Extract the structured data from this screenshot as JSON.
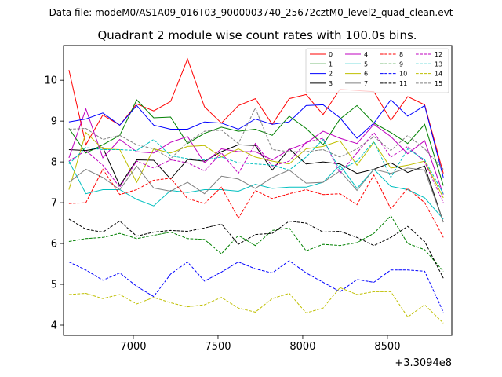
{
  "chart_data": {
    "type": "line",
    "suptitle": "Data file: modeM0/AS1A09_016T03_9000003740_25672cztM0_level2_quad_clean.evt",
    "title": "Quadrant 2 module wise count rates with 100.0s bins.",
    "xlabel": "",
    "ylabel": "",
    "x_offset_label": "+3.3094e8",
    "xlim": [
      6588,
      8880
    ],
    "ylim": [
      3.75,
      10.85
    ],
    "xticks": [
      7000,
      7500,
      8000,
      8500
    ],
    "xtick_labels": [
      "7000",
      "7500",
      "8000",
      "8500"
    ],
    "yticks": [
      4,
      5,
      6,
      7,
      8,
      9,
      10
    ],
    "ytick_labels": [
      "4",
      "5",
      "6",
      "7",
      "8",
      "9",
      "10"
    ],
    "grid": false,
    "legend_position": "top-right",
    "x": [
      6620,
      6720,
      6820,
      6920,
      7020,
      7120,
      7220,
      7320,
      7420,
      7520,
      7620,
      7720,
      7820,
      7920,
      8020,
      8120,
      8220,
      8320,
      8420,
      8520,
      8620,
      8720,
      8830
    ],
    "series": [
      {
        "name": "0",
        "color": "#ff0000",
        "dash": "solid",
        "values": [
          10.25,
          8.42,
          9.15,
          8.9,
          9.42,
          9.25,
          9.48,
          10.52,
          9.35,
          8.95,
          9.38,
          9.55,
          8.92,
          9.55,
          9.65,
          9.16,
          9.78,
          9.75,
          9.72,
          9.02,
          9.6,
          9.4,
          7.72
        ]
      },
      {
        "name": "1",
        "color": "#008000",
        "dash": "solid",
        "values": [
          8.82,
          8.22,
          8.42,
          8.65,
          9.52,
          9.08,
          9.1,
          8.45,
          8.7,
          8.85,
          8.75,
          8.8,
          8.65,
          9.12,
          8.82,
          8.42,
          9.05,
          9.38,
          8.95,
          8.72,
          8.45,
          8.92,
          7.42
        ]
      },
      {
        "name": "2",
        "color": "#0000ff",
        "dash": "solid",
        "values": [
          8.98,
          9.05,
          9.2,
          8.9,
          9.38,
          8.9,
          8.8,
          8.8,
          8.98,
          8.95,
          8.8,
          9.05,
          8.92,
          8.98,
          9.38,
          9.4,
          9.08,
          8.58,
          8.95,
          9.52,
          9.12,
          9.38,
          7.62
        ]
      },
      {
        "name": "3",
        "color": "#000000",
        "dash": "solid",
        "values": [
          8.3,
          8.28,
          8.35,
          7.42,
          8.05,
          8.04,
          7.58,
          8.06,
          8.02,
          8.25,
          8.42,
          8.4,
          7.8,
          8.32,
          7.95,
          8.0,
          7.95,
          7.72,
          7.82,
          7.98,
          7.74,
          7.9,
          6.52
        ]
      },
      {
        "name": "4",
        "color": "#bf00bf",
        "dash": "solid",
        "values": [
          8.1,
          9.3,
          8.1,
          8.55,
          8.25,
          8.22,
          8.48,
          8.62,
          7.98,
          8.32,
          8.25,
          8.25,
          8.05,
          8.3,
          8.46,
          8.75,
          8.58,
          8.45,
          8.92,
          8.62,
          8.2,
          8.52,
          7.2
        ]
      },
      {
        "name": "5",
        "color": "#00bfbf",
        "dash": "solid",
        "values": [
          8.02,
          7.22,
          7.32,
          7.32,
          7.08,
          6.92,
          7.3,
          7.25,
          7.32,
          7.32,
          7.28,
          7.45,
          7.35,
          7.38,
          7.38,
          7.5,
          7.92,
          7.35,
          7.82,
          7.4,
          7.32,
          7.12,
          6.6
        ]
      },
      {
        "name": "6",
        "color": "#bfbf00",
        "dash": "solid",
        "values": [
          7.32,
          8.72,
          8.32,
          8.3,
          7.5,
          8.32,
          8.22,
          8.38,
          8.4,
          8.12,
          8.32,
          8.12,
          8.02,
          7.95,
          8.32,
          8.38,
          8.52,
          7.92,
          8.48,
          7.85,
          7.92,
          8.02,
          7.12
        ]
      },
      {
        "name": "7",
        "color": "#808080",
        "dash": "solid",
        "values": [
          7.5,
          7.82,
          7.62,
          7.32,
          7.9,
          7.36,
          7.28,
          7.5,
          7.22,
          7.65,
          7.58,
          7.35,
          7.62,
          7.8,
          7.48,
          7.5,
          7.78,
          7.3,
          7.82,
          7.72,
          7.85,
          7.8,
          6.52
        ]
      },
      {
        "name": "8",
        "color": "#ff0000",
        "dash": "dashed",
        "values": [
          6.98,
          7.0,
          7.82,
          7.2,
          7.32,
          7.55,
          7.6,
          7.1,
          6.98,
          7.38,
          6.62,
          7.3,
          7.1,
          7.22,
          7.32,
          7.2,
          7.22,
          6.95,
          7.68,
          6.85,
          7.35,
          7.0,
          6.15
        ]
      },
      {
        "name": "9",
        "color": "#008000",
        "dash": "dashed",
        "values": [
          6.05,
          6.12,
          6.15,
          6.25,
          6.12,
          6.2,
          6.28,
          6.12,
          6.1,
          5.75,
          6.2,
          5.95,
          6.32,
          6.38,
          5.82,
          5.98,
          5.95,
          6.02,
          6.25,
          6.68,
          6.0,
          5.85,
          5.32
        ]
      },
      {
        "name": "10",
        "color": "#0000ff",
        "dash": "dashed",
        "values": [
          5.55,
          5.35,
          5.1,
          5.28,
          4.95,
          4.7,
          5.25,
          5.55,
          5.08,
          5.3,
          5.55,
          5.38,
          5.28,
          5.58,
          5.28,
          5.05,
          4.82,
          5.12,
          5.05,
          5.35,
          5.35,
          5.32,
          4.32
        ]
      },
      {
        "name": "11",
        "color": "#000000",
        "dash": "dashed",
        "values": [
          6.6,
          6.35,
          6.28,
          6.55,
          6.18,
          6.28,
          6.32,
          6.3,
          6.38,
          6.48,
          5.98,
          6.22,
          6.25,
          6.55,
          6.5,
          6.28,
          6.3,
          6.15,
          5.95,
          6.15,
          6.42,
          6.05,
          5.15
        ]
      },
      {
        "name": "12",
        "color": "#bf00bf",
        "dash": "dashed",
        "values": [
          8.02,
          8.28,
          7.92,
          7.38,
          8.02,
          7.85,
          8.05,
          7.98,
          7.78,
          8.22,
          7.72,
          8.45,
          7.9,
          8.02,
          8.48,
          8.58,
          7.72,
          8.22,
          8.72,
          8.12,
          8.38,
          8.0,
          7.0
        ]
      },
      {
        "name": "13",
        "color": "#00bfbf",
        "dash": "dashed",
        "values": [
          7.95,
          8.35,
          8.3,
          8.3,
          8.28,
          8.55,
          8.15,
          8.08,
          8.05,
          8.12,
          7.98,
          7.95,
          7.92,
          7.8,
          8.12,
          8.55,
          7.8,
          8.02,
          8.5,
          7.62,
          8.32,
          8.05,
          7.22
        ]
      },
      {
        "name": "14",
        "color": "#bfbf00",
        "dash": "dashed",
        "values": [
          4.75,
          4.78,
          4.65,
          4.75,
          4.52,
          4.68,
          4.55,
          4.45,
          4.5,
          4.68,
          4.42,
          4.32,
          4.65,
          4.78,
          4.3,
          4.42,
          4.92,
          4.75,
          4.82,
          4.82,
          4.2,
          4.5,
          4.05
        ]
      },
      {
        "name": "15",
        "color": "#808080",
        "dash": "dashed",
        "values": [
          8.8,
          8.82,
          8.55,
          8.65,
          8.42,
          8.32,
          8.08,
          8.48,
          8.75,
          8.78,
          8.45,
          9.32,
          8.3,
          8.25,
          8.25,
          8.3,
          8.12,
          8.32,
          8.62,
          8.28,
          8.65,
          8.32,
          7.82
        ]
      }
    ]
  }
}
